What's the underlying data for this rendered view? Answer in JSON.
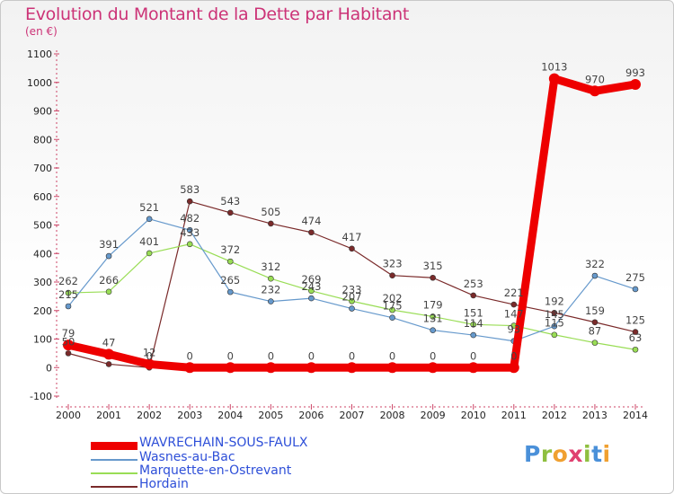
{
  "header": {
    "title": "Evolution du Montant de la Dette par Habitant",
    "unit": "(en €)"
  },
  "logo": {
    "text": "Proxiti",
    "letters": [
      "P",
      "r",
      "o",
      "x",
      "i",
      "t",
      "i"
    ],
    "colors": [
      "#4a90d9",
      "#8fbf3f",
      "#f0a030",
      "#e04070",
      "#8fbf3f",
      "#4a90d9",
      "#f0a030"
    ]
  },
  "chart_data": {
    "type": "line",
    "title": "Evolution du Montant de la Dette par Habitant",
    "subtitle": "(en €)",
    "xlabel": "",
    "ylabel": "",
    "x": [
      "2000",
      "2001",
      "2002",
      "2003",
      "2004",
      "2005",
      "2006",
      "2007",
      "2008",
      "2009",
      "2010",
      "2011",
      "2012",
      "2013",
      "2014"
    ],
    "ylim": [
      -100,
      1100
    ],
    "yticks": [
      -100,
      0,
      100,
      200,
      300,
      400,
      500,
      600,
      700,
      800,
      900,
      1000,
      1100
    ],
    "grid": false,
    "legend": "bottom-left",
    "series": [
      {
        "name": "Hordain",
        "color": "#7a2a2a",
        "width": 1.2,
        "marker": 3,
        "values": [
          50,
          12,
          0,
          583,
          543,
          505,
          474,
          417,
          323,
          315,
          253,
          221,
          192,
          159,
          125
        ],
        "labels": [
          "50",
          "",
          "0",
          "583",
          "543",
          "505",
          "474",
          "417",
          "323",
          "315",
          "253",
          "221",
          "192",
          "159",
          "125"
        ]
      },
      {
        "name": "Marquette-en-Ostrevant",
        "color": "#99dd55",
        "width": 1.2,
        "marker": 3,
        "values": [
          262,
          266,
          401,
          433,
          372,
          312,
          269,
          233,
          202,
          179,
          151,
          147,
          115,
          87,
          63
        ],
        "labels": [
          "262",
          "266",
          "401",
          "433",
          "372",
          "312",
          "269",
          "233",
          "202",
          "179",
          "151",
          "147",
          "115",
          "87",
          "63"
        ]
      },
      {
        "name": "Wasnes-au-Bac",
        "color": "#6699cc",
        "width": 1.2,
        "marker": 3,
        "values": [
          215,
          391,
          521,
          482,
          265,
          232,
          243,
          207,
          175,
          131,
          114,
          93,
          145,
          322,
          275
        ],
        "labels": [
          "215",
          "391",
          "521",
          "482",
          "265",
          "232",
          "243",
          "207",
          "175",
          "131",
          "114",
          "93",
          "145",
          "322",
          "275"
        ]
      },
      {
        "name": "WAVRECHAIN-SOUS-FAULX",
        "color": "#ee0000",
        "width": 9,
        "marker": 6,
        "values": [
          79,
          47,
          12,
          0,
          0,
          0,
          0,
          0,
          0,
          0,
          0,
          0,
          1013,
          970,
          993
        ],
        "labels": [
          "79",
          "47",
          "12",
          "0",
          "0",
          "0",
          "0",
          "0",
          "0",
          "0",
          "0",
          "0",
          "1013",
          "970",
          "993"
        ]
      }
    ],
    "legend_order": [
      "WAVRECHAIN-SOUS-FAULX",
      "Wasnes-au-Bac",
      "Marquette-en-Ostrevant",
      "Hordain"
    ]
  }
}
